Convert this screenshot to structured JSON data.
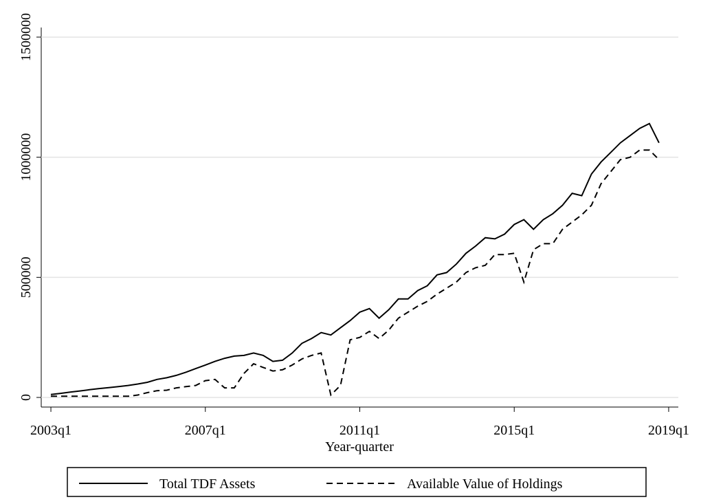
{
  "chart_data": {
    "type": "line",
    "xlabel": "Year-quarter",
    "x": [
      "2003q1",
      "2003q2",
      "2003q3",
      "2003q4",
      "2004q1",
      "2004q2",
      "2004q3",
      "2004q4",
      "2005q1",
      "2005q2",
      "2005q3",
      "2005q4",
      "2006q1",
      "2006q2",
      "2006q3",
      "2006q4",
      "2007q1",
      "2007q2",
      "2007q3",
      "2007q4",
      "2008q1",
      "2008q2",
      "2008q3",
      "2008q4",
      "2009q1",
      "2009q2",
      "2009q3",
      "2009q4",
      "2010q1",
      "2010q2",
      "2010q3",
      "2010q4",
      "2011q1",
      "2011q2",
      "2011q3",
      "2011q4",
      "2012q1",
      "2012q2",
      "2012q3",
      "2012q4",
      "2013q1",
      "2013q2",
      "2013q3",
      "2013q4",
      "2014q1",
      "2014q2",
      "2014q3",
      "2014q4",
      "2015q1",
      "2015q2",
      "2015q3",
      "2015q4",
      "2016q1",
      "2016q2",
      "2016q3",
      "2016q4",
      "2017q1",
      "2017q2",
      "2017q3",
      "2017q4",
      "2018q1",
      "2018q2",
      "2018q3",
      "2018q4"
    ],
    "series": [
      {
        "name": "Total TDF Assets",
        "color": "#000000",
        "style": "solid",
        "values": [
          12000,
          17000,
          22000,
          27000,
          32000,
          37000,
          41000,
          45000,
          50000,
          56000,
          63000,
          75000,
          82000,
          92000,
          105000,
          120000,
          135000,
          150000,
          163000,
          172000,
          175000,
          185000,
          175000,
          150000,
          155000,
          185000,
          225000,
          245000,
          270000,
          260000,
          290000,
          320000,
          355000,
          370000,
          330000,
          365000,
          410000,
          410000,
          445000,
          465000,
          510000,
          520000,
          555000,
          600000,
          630000,
          665000,
          660000,
          680000,
          720000,
          740000,
          700000,
          740000,
          765000,
          800000,
          850000,
          840000,
          930000,
          980000,
          1020000,
          1060000,
          1090000,
          1120000,
          1140000,
          1060000
        ]
      },
      {
        "name": "Available Value of Holdings",
        "color": "#000000",
        "style": "dashed",
        "values": [
          5000,
          5000,
          5000,
          5000,
          5000,
          5000,
          5000,
          5000,
          5000,
          10000,
          20000,
          28000,
          30000,
          40000,
          45000,
          50000,
          70000,
          75000,
          40000,
          40000,
          100000,
          140000,
          125000,
          110000,
          115000,
          135000,
          160000,
          175000,
          185000,
          10000,
          50000,
          240000,
          250000,
          275000,
          245000,
          280000,
          330000,
          355000,
          380000,
          400000,
          430000,
          455000,
          480000,
          520000,
          540000,
          550000,
          595000,
          595000,
          600000,
          480000,
          615000,
          640000,
          640000,
          700000,
          730000,
          760000,
          800000,
          890000,
          940000,
          990000,
          1000000,
          1030000,
          1030000,
          990000
        ]
      }
    ],
    "xlim": [
      "2002q4",
      "2019q2"
    ],
    "xticks": [
      "2003q1",
      "2007q1",
      "2011q1",
      "2015q1",
      "2019q1"
    ],
    "ylim": [
      -40000,
      1540000
    ],
    "yticks": [
      0,
      500000,
      1000000,
      1500000
    ],
    "grid": true,
    "legend": "bottom"
  }
}
